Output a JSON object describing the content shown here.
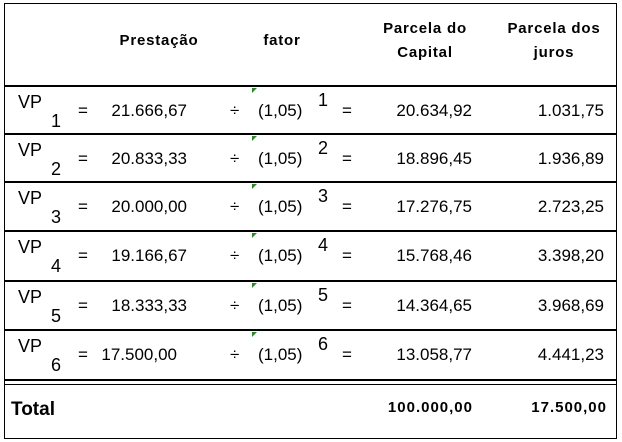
{
  "header": {
    "prestacao": "Prestação",
    "fator": "fator",
    "capital_line1": "Parcela do",
    "capital_line2": "Capital",
    "juros_line1": "Parcela dos",
    "juros_line2": "juros"
  },
  "rows": [
    {
      "vp": "VP",
      "index": "1",
      "eq": "=",
      "prestacao": "21.666,67",
      "div": "÷",
      "fator": "(1,05)",
      "exp": "1",
      "eq2": "=",
      "capital": "20.634,92",
      "juros": "1.031,75"
    },
    {
      "vp": "VP",
      "index": "2",
      "eq": "=",
      "prestacao": "20.833,33",
      "div": "÷",
      "fator": "(1,05)",
      "exp": "2",
      "eq2": "=",
      "capital": "18.896,45",
      "juros": "1.936,89"
    },
    {
      "vp": "VP",
      "index": "3",
      "eq": "=",
      "prestacao": "20.000,00",
      "div": "÷",
      "fator": "(1,05)",
      "exp": "3",
      "eq2": "=",
      "capital": "17.276,75",
      "juros": "2.723,25"
    },
    {
      "vp": "VP",
      "index": "4",
      "eq": "=",
      "prestacao": "19.166,67",
      "div": "÷",
      "fator": "(1,05)",
      "exp": "4",
      "eq2": "=",
      "capital": "15.768,46",
      "juros": "3.398,20"
    },
    {
      "vp": "VP",
      "index": "5",
      "eq": "=",
      "prestacao": "18.333,33",
      "div": "÷",
      "fator": "(1,05)",
      "exp": "5",
      "eq2": "=",
      "capital": "14.364,65",
      "juros": "3.968,69"
    },
    {
      "vp": "VP",
      "index": "6",
      "eq": "=",
      "prestacao": "17.500,00",
      "div": "÷",
      "fator": "(1,05)",
      "exp": "6",
      "eq2": "=",
      "capital": "13.058,77",
      "juros": "4.441,23"
    }
  ],
  "total": {
    "label": "Total",
    "capital": "100.000,00",
    "juros": "17.500,00"
  },
  "colors": {
    "border": "#000000",
    "cell_marker": "#2a8a2a"
  }
}
